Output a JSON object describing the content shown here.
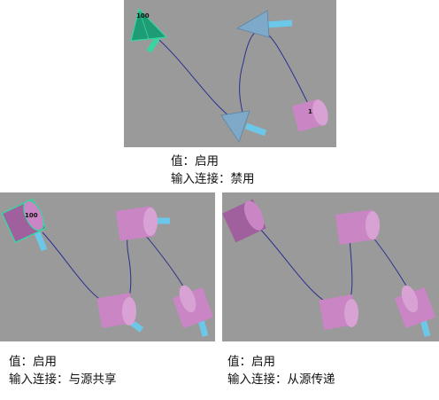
{
  "panels": [
    {
      "value_label": "值：启用",
      "input_label": "输入连接：禁用",
      "marker": "100",
      "end_marker": "1"
    },
    {
      "value_label": "值：启用",
      "input_label": "输入连接：与源共享",
      "marker": "100"
    },
    {
      "value_label": "值：启用",
      "input_label": "输入连接：从源传递"
    }
  ],
  "colors": {
    "viewport_bg": "#9a9a9a",
    "curve": "#2b2f8f",
    "cone_blue": "#7fa9c9",
    "cylinder_pink": "#c985c4",
    "selected_green": "#37d6a0",
    "shaft_cyan": "#6cc8e8"
  }
}
